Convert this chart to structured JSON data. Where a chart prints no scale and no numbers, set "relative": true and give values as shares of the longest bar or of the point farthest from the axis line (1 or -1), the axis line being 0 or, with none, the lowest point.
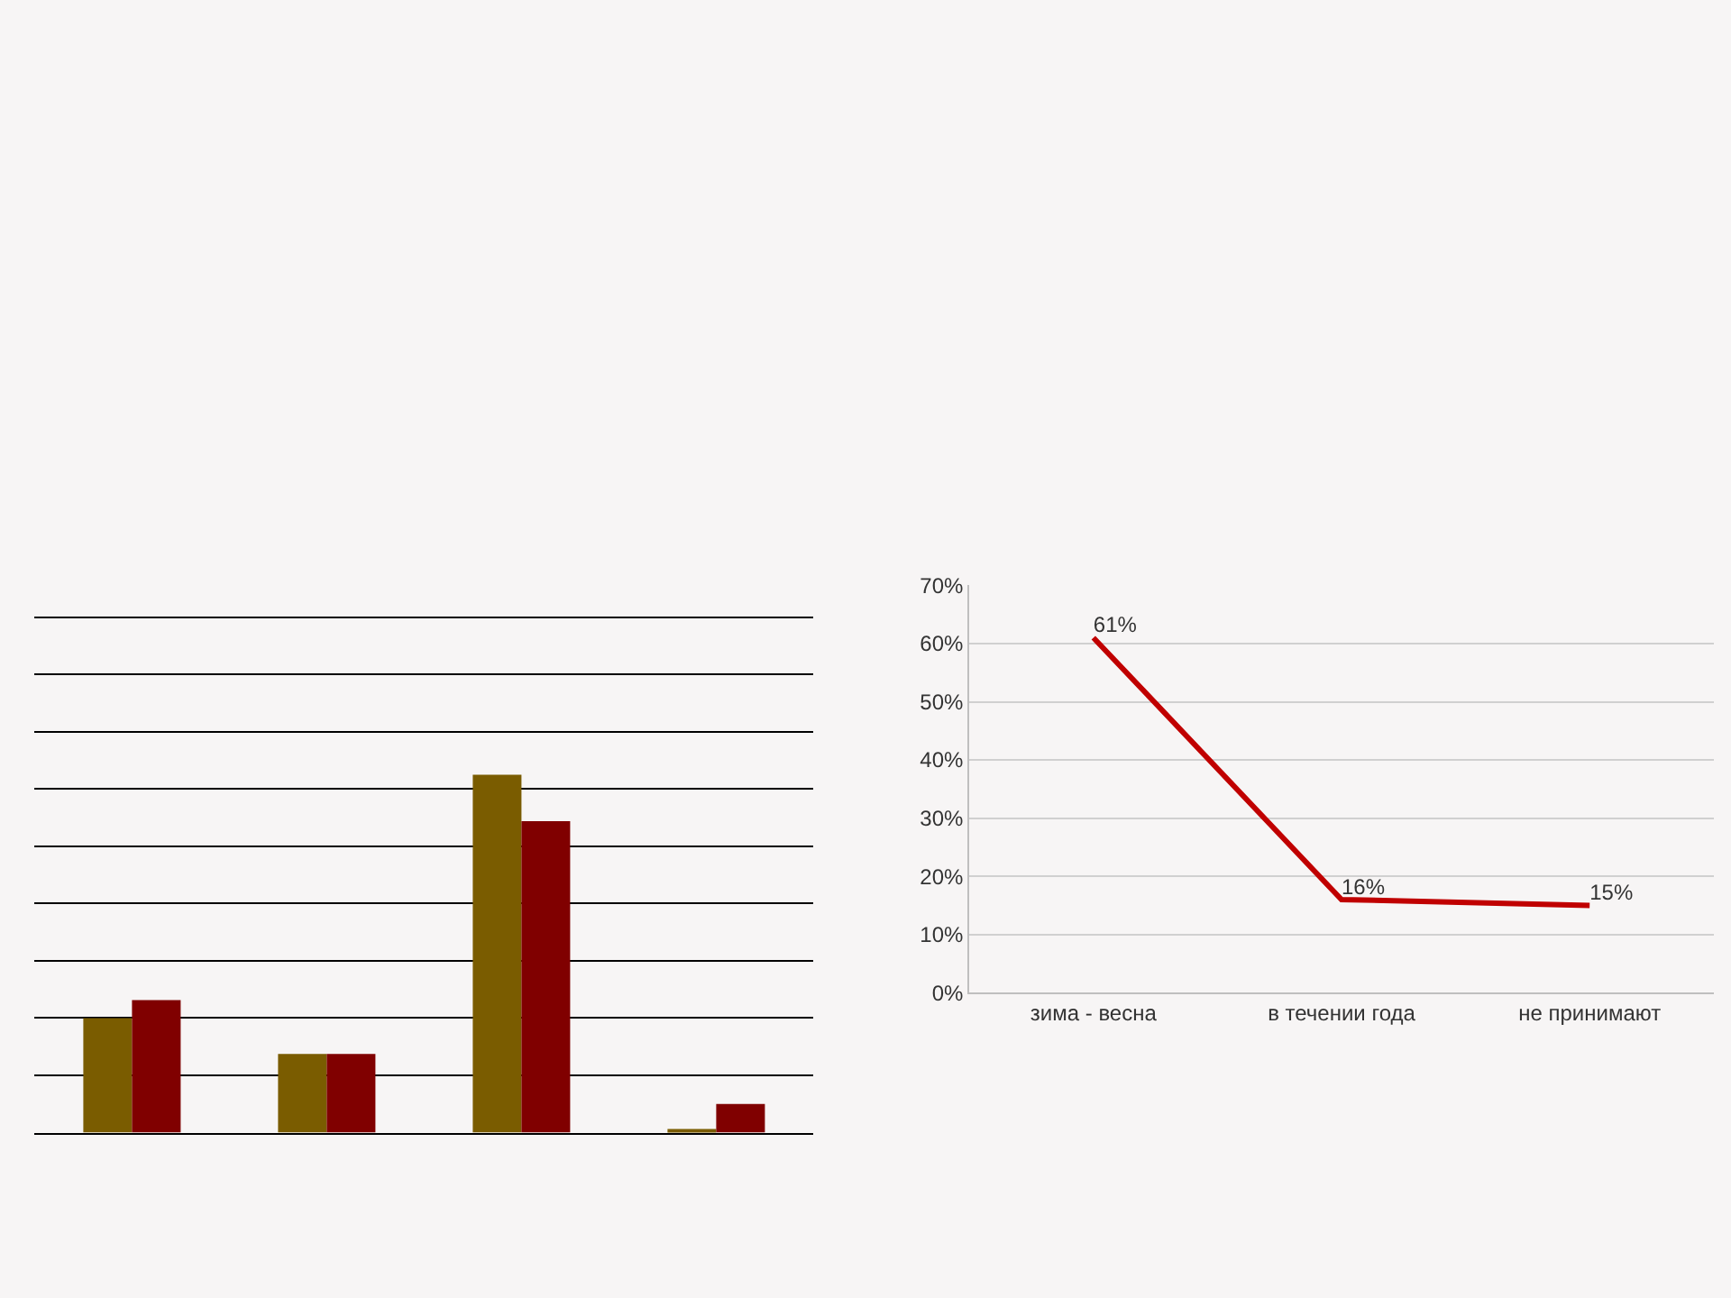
{
  "chart_data": [
    {
      "type": "bar",
      "relative": true,
      "categories": [
        null,
        null,
        null,
        null
      ],
      "grid": "y",
      "series": [
        {
          "color": "#7a5c00",
          "values": [
            0.32,
            0.22,
            1,
            0.01
          ]
        },
        {
          "color": "#800000",
          "values": [
            0.37,
            0.22,
            0.87,
            0.08
          ]
        }
      ]
    },
    {
      "type": "line",
      "categories": [
        "зима - весна",
        "в течении года",
        "не принимают"
      ],
      "ylim": [
        0,
        70
      ],
      "yticks": [
        {
          "value": 0,
          "label": "0%"
        },
        {
          "value": 10,
          "label": "10%"
        },
        {
          "value": 20,
          "label": "20%"
        },
        {
          "value": 30,
          "label": "30%"
        },
        {
          "value": 40,
          "label": "40%"
        },
        {
          "value": 50,
          "label": "50%"
        },
        {
          "value": 60,
          "label": "60%"
        },
        {
          "value": 70,
          "label": "70%"
        }
      ],
      "grid": "y",
      "marker": "none",
      "line_style": "solid",
      "series": [
        {
          "color": "#c00000",
          "values": [
            61,
            16,
            15
          ],
          "value_labels": [
            "61%",
            "16%",
            "15%"
          ]
        }
      ]
    }
  ]
}
